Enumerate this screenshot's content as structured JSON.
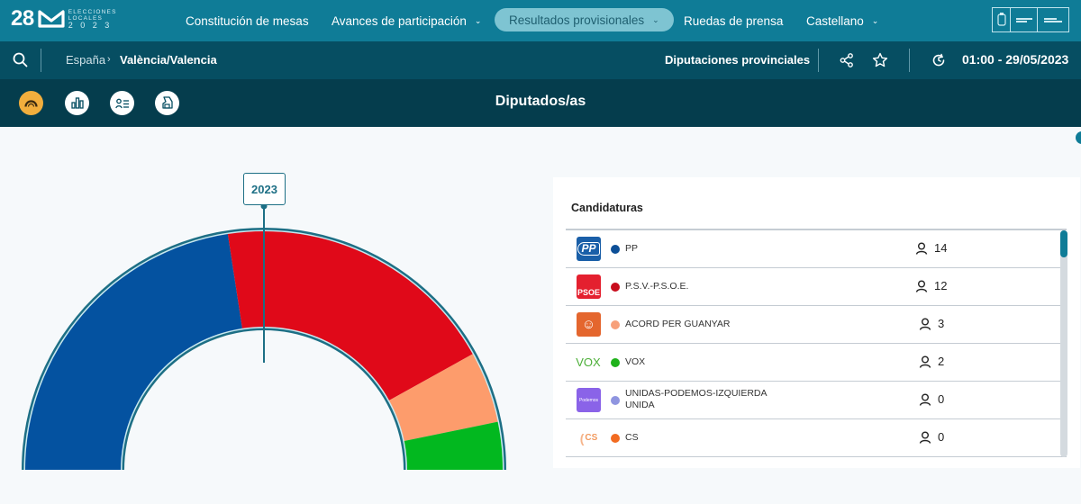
{
  "header": {
    "logo": {
      "number": "28",
      "subtitle_lines": [
        "ELECCIONES",
        "LOCALES",
        "2 0 2 3"
      ]
    },
    "nav": [
      {
        "label": "Constitución de mesas",
        "dropdown": false,
        "active": false
      },
      {
        "label": "Avances de participación",
        "dropdown": true,
        "active": false
      },
      {
        "label": "Resultados provisionales",
        "dropdown": true,
        "active": true
      },
      {
        "label": "Ruedas de prensa",
        "dropdown": false,
        "active": false
      },
      {
        "label": "Castellano",
        "dropdown": true,
        "active": false
      }
    ],
    "chevron": "⌄",
    "gov_logo": "gobierno-de-espana-ministerio-del-interior-logo"
  },
  "subbar": {
    "breadcrumb": {
      "root": "España",
      "separator": "›",
      "current": "València/Valencia"
    },
    "section": "Diputaciones provinciales",
    "timestamp": "01:00 - 29/05/2023",
    "icons": [
      "search-icon",
      "share-icon",
      "star-icon",
      "history-icon"
    ]
  },
  "toolbar": {
    "title": "Diputados/as",
    "views": [
      {
        "name": "hemicycle-view",
        "active": true
      },
      {
        "name": "bar-chart-view",
        "active": false
      },
      {
        "name": "candidates-list-view",
        "active": false
      },
      {
        "name": "map-view",
        "active": false
      }
    ]
  },
  "chart": {
    "year_label": "2023"
  },
  "chart_data": {
    "type": "pie",
    "subtype": "semicircle-hemicycle",
    "title": "Diputados/as",
    "annotation": "2023",
    "categories": [
      "PP",
      "P.S.V.-P.S.O.E.",
      "ACORD PER GUANYAR",
      "VOX"
    ],
    "values": [
      14,
      12,
      3,
      2
    ],
    "colors": [
      "#0452a0",
      "#e00919",
      "#fd9c6c",
      "#02b81f"
    ],
    "total": 31
  },
  "panel": {
    "title": "Candidaturas",
    "rows": [
      {
        "logo": "PP",
        "logo_bg": "#1a5fa8",
        "dot": "#0c4f97",
        "name_line1": "PP",
        "name_line2": "",
        "seats": "14"
      },
      {
        "logo": "PSOE",
        "logo_bg": "#e4202f",
        "dot": "#c80d1d",
        "name_line1": "P.S.V.-P.S.O.E.",
        "name_line2": "",
        "seats": "12"
      },
      {
        "logo": "☺",
        "logo_bg": "#e4662e",
        "dot": "#f7a07a",
        "name_line1": "ACORD PER GUANYAR",
        "name_line2": "",
        "seats": "3"
      },
      {
        "logo": "VOX",
        "logo_bg": "transparent",
        "dot": "#1fb21b",
        "name_line1": "VOX",
        "name_line2": "",
        "seats": "2"
      },
      {
        "logo": "Podemos",
        "logo_bg": "#8a63e8",
        "dot": "#8f95e0",
        "name_line1": "UNIDAS-PODEMOS-IZQUIERDA",
        "name_line2": "UNIDA",
        "seats": "0"
      },
      {
        "logo": "CS",
        "logo_bg": "transparent",
        "dot": "#f26b21",
        "name_line1": "CS",
        "name_line2": "",
        "seats": "0"
      }
    ]
  }
}
